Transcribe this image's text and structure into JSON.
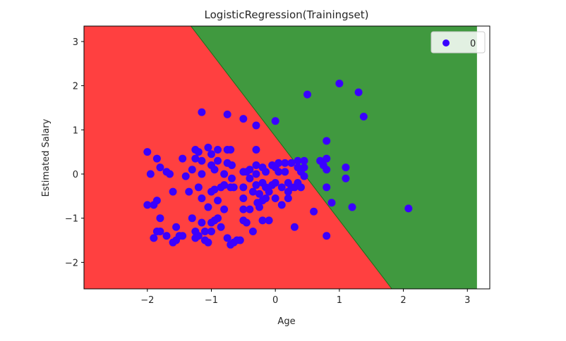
{
  "chart_data": {
    "type": "scatter",
    "title": "LogisticRegression(Trainingset)",
    "xlabel": "Age",
    "ylabel": "Estimated Salary",
    "xlim": [
      -2.99,
      3.35
    ],
    "ylim": [
      -2.6,
      3.35
    ],
    "x_ticks": [
      -2,
      -1,
      0,
      1,
      2,
      3
    ],
    "y_ticks": [
      -2,
      -1,
      0,
      1,
      2,
      3
    ],
    "x_tick_labels": [
      "−2",
      "−1",
      "0",
      "1",
      "2",
      "3"
    ],
    "y_tick_labels": [
      "−2",
      "−1",
      "0",
      "1",
      "2",
      "3"
    ],
    "grid": false,
    "legend_position": "top-right",
    "decision_regions": {
      "fill_x_range": [
        -2.99,
        3.15
      ],
      "boundary_line": [
        [
          -1.32,
          3.35
        ],
        [
          1.82,
          -2.6
        ]
      ],
      "class_0_color": "#ff4040",
      "class_1_color": "#40993f",
      "boundary_color": "#1a6e1a"
    },
    "series": [
      {
        "name": "0",
        "color": "#3a00ff",
        "points": [
          [
            -2.0,
            0.5
          ],
          [
            -1.9,
            -0.7
          ],
          [
            -2.0,
            -0.7
          ],
          [
            -1.95,
            0.0
          ],
          [
            -1.85,
            0.35
          ],
          [
            -1.8,
            0.15
          ],
          [
            -1.85,
            -0.6
          ],
          [
            -1.8,
            -1.0
          ],
          [
            -1.85,
            -1.3
          ],
          [
            -1.8,
            -1.3
          ],
          [
            -1.9,
            -1.45
          ],
          [
            -1.7,
            0.05
          ],
          [
            -1.65,
            0.0
          ],
          [
            -1.6,
            -0.4
          ],
          [
            -1.7,
            -1.4
          ],
          [
            -1.6,
            -1.55
          ],
          [
            -1.55,
            -1.5
          ],
          [
            -1.5,
            -1.4
          ],
          [
            -1.45,
            -1.4
          ],
          [
            -1.55,
            -1.2
          ],
          [
            -1.45,
            0.35
          ],
          [
            -1.4,
            -0.05
          ],
          [
            -1.35,
            -0.4
          ],
          [
            -1.3,
            0.1
          ],
          [
            -1.25,
            0.55
          ],
          [
            -1.25,
            0.35
          ],
          [
            -1.3,
            -1.0
          ],
          [
            -1.25,
            -1.3
          ],
          [
            -1.2,
            -1.4
          ],
          [
            -1.25,
            -1.45
          ],
          [
            -1.15,
            1.4
          ],
          [
            -1.2,
            0.5
          ],
          [
            -1.15,
            0.3
          ],
          [
            -1.15,
            0.0
          ],
          [
            -1.2,
            -0.3
          ],
          [
            -1.15,
            -0.55
          ],
          [
            -1.15,
            -1.1
          ],
          [
            -1.1,
            -1.5
          ],
          [
            -1.05,
            -1.55
          ],
          [
            -1.1,
            -1.3
          ],
          [
            -1.05,
            0.6
          ],
          [
            -1.0,
            0.45
          ],
          [
            -1.0,
            0.2
          ],
          [
            -0.95,
            0.1
          ],
          [
            -0.95,
            -0.35
          ],
          [
            -1.0,
            -0.4
          ],
          [
            -1.05,
            -0.75
          ],
          [
            -1.0,
            -1.1
          ],
          [
            -0.95,
            -1.05
          ],
          [
            -1.0,
            -1.3
          ],
          [
            -0.9,
            0.55
          ],
          [
            -0.9,
            0.3
          ],
          [
            -0.85,
            -0.3
          ],
          [
            -0.9,
            -0.6
          ],
          [
            -0.9,
            -1.0
          ],
          [
            -0.85,
            -1.2
          ],
          [
            -0.8,
            0.0
          ],
          [
            -0.8,
            -0.25
          ],
          [
            -0.8,
            -0.8
          ],
          [
            -0.75,
            1.35
          ],
          [
            -0.75,
            0.55
          ],
          [
            -0.75,
            0.25
          ],
          [
            -0.7,
            -0.3
          ],
          [
            -0.75,
            -1.45
          ],
          [
            -0.7,
            -1.6
          ],
          [
            -0.7,
            0.55
          ],
          [
            -0.68,
            0.2
          ],
          [
            -0.68,
            -0.1
          ],
          [
            -0.65,
            -0.3
          ],
          [
            -0.65,
            -1.55
          ],
          [
            -0.6,
            -1.5
          ],
          [
            -0.55,
            -1.5
          ],
          [
            -0.5,
            1.25
          ],
          [
            -0.5,
            0.05
          ],
          [
            -0.5,
            -0.3
          ],
          [
            -0.5,
            -0.55
          ],
          [
            -0.5,
            -0.8
          ],
          [
            -0.5,
            -1.05
          ],
          [
            -0.45,
            -1.1
          ],
          [
            -0.45,
            0.05
          ],
          [
            -0.4,
            0.1
          ],
          [
            -0.4,
            -0.1
          ],
          [
            -0.4,
            -0.8
          ],
          [
            -0.35,
            -0.4
          ],
          [
            -0.35,
            -1.3
          ],
          [
            -0.3,
            1.1
          ],
          [
            -0.3,
            0.55
          ],
          [
            -0.3,
            0.2
          ],
          [
            -0.3,
            0.0
          ],
          [
            -0.3,
            -0.25
          ],
          [
            -0.28,
            -0.65
          ],
          [
            -0.25,
            -0.45
          ],
          [
            -0.25,
            -0.75
          ],
          [
            -0.2,
            0.15
          ],
          [
            -0.2,
            -0.2
          ],
          [
            -0.2,
            -0.6
          ],
          [
            -0.2,
            -1.05
          ],
          [
            -0.15,
            0.05
          ],
          [
            -0.15,
            -0.3
          ],
          [
            -0.15,
            -0.55
          ],
          [
            -0.1,
            -0.4
          ],
          [
            -0.1,
            -1.05
          ],
          [
            -0.05,
            0.2
          ],
          [
            -0.05,
            -0.25
          ],
          [
            0.0,
            1.2
          ],
          [
            0.0,
            0.15
          ],
          [
            0.0,
            -0.2
          ],
          [
            0.0,
            -0.55
          ],
          [
            0.05,
            0.25
          ],
          [
            0.05,
            0.05
          ],
          [
            0.1,
            -0.3
          ],
          [
            0.1,
            -0.7
          ],
          [
            0.15,
            0.25
          ],
          [
            0.15,
            0.05
          ],
          [
            0.2,
            -0.2
          ],
          [
            0.2,
            -0.4
          ],
          [
            0.2,
            -0.55
          ],
          [
            0.25,
            0.25
          ],
          [
            0.25,
            -0.3
          ],
          [
            0.3,
            -0.3
          ],
          [
            0.3,
            -1.2
          ],
          [
            0.35,
            0.3
          ],
          [
            0.35,
            0.15
          ],
          [
            0.35,
            -0.2
          ],
          [
            0.4,
            0.05
          ],
          [
            0.4,
            -0.3
          ],
          [
            0.45,
            0.3
          ],
          [
            0.45,
            0.15
          ],
          [
            0.45,
            -0.05
          ],
          [
            0.5,
            1.8
          ],
          [
            0.6,
            -0.85
          ],
          [
            0.7,
            0.3
          ],
          [
            0.75,
            0.2
          ],
          [
            0.8,
            0.75
          ],
          [
            0.8,
            0.35
          ],
          [
            0.8,
            0.1
          ],
          [
            0.8,
            -0.3
          ],
          [
            0.8,
            -1.4
          ],
          [
            0.88,
            -0.65
          ],
          [
            1.0,
            2.05
          ],
          [
            1.1,
            0.15
          ],
          [
            1.1,
            -0.1
          ],
          [
            1.2,
            -0.75
          ],
          [
            1.3,
            1.85
          ],
          [
            1.38,
            1.3
          ],
          [
            2.08,
            -0.78
          ]
        ]
      }
    ]
  }
}
